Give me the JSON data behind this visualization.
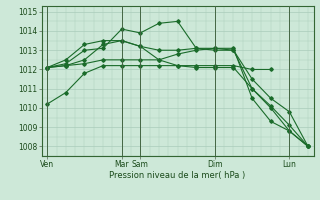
{
  "title": "",
  "xlabel": "Pression niveau de la mer( hPa )",
  "ylabel": "",
  "bg_color": "#cde8d8",
  "grid_color": "#aaccbb",
  "line_color": "#1a6b2a",
  "ylim": [
    1007.5,
    1015.3
  ],
  "xlim": [
    -0.3,
    14.3
  ],
  "x_ticks": [
    0,
    4,
    5,
    9,
    13
  ],
  "x_tick_labels": [
    "Ven",
    "Mar",
    "Sam",
    "Dim",
    "Lun"
  ],
  "x_vlines": [
    0,
    4,
    5,
    9,
    13
  ],
  "yticks": [
    1008,
    1009,
    1010,
    1011,
    1012,
    1013,
    1014,
    1015
  ],
  "series": [
    [
      1010.2,
      1010.8,
      1011.8,
      1012.2,
      1012.2,
      1012.2,
      1012.2,
      1012.2,
      1012.2,
      1012.2,
      1012.2,
      1012.0,
      1012.0
    ],
    [
      1012.1,
      1012.2,
      1012.5,
      1013.3,
      1013.5,
      1013.2,
      1013.0,
      1013.0,
      1013.1,
      1013.1,
      1013.0,
      1011.5,
      1010.5,
      1009.8,
      1008.0
    ],
    [
      1012.1,
      1012.3,
      1013.0,
      1013.1,
      1014.1,
      1013.9,
      1014.4,
      1014.5,
      1013.1,
      1013.0,
      1013.0,
      1011.0,
      1010.0,
      1008.8,
      1008.0
    ],
    [
      1012.1,
      1012.5,
      1013.3,
      1013.5,
      1013.5,
      1013.2,
      1012.5,
      1012.2,
      1012.1,
      1012.1,
      1012.1,
      1011.0,
      1010.1,
      1009.1,
      1008.0
    ],
    [
      1012.1,
      1012.2,
      1012.3,
      1012.5,
      1012.5,
      1012.5,
      1012.5,
      1012.8,
      1013.0,
      1013.1,
      1013.1,
      1010.5,
      1009.3,
      1008.8,
      1008.0
    ]
  ],
  "series_x": [
    [
      0,
      1,
      2,
      3,
      4,
      5,
      6,
      7,
      8,
      9,
      10,
      11,
      12
    ],
    [
      0,
      1,
      2,
      3,
      4,
      5,
      6,
      7,
      8,
      9,
      10,
      11,
      12,
      13,
      14
    ],
    [
      0,
      1,
      2,
      3,
      4,
      5,
      6,
      7,
      8,
      9,
      10,
      11,
      12,
      13,
      14
    ],
    [
      0,
      1,
      2,
      3,
      4,
      5,
      6,
      7,
      8,
      9,
      10,
      11,
      12,
      13,
      14
    ],
    [
      0,
      1,
      2,
      3,
      4,
      5,
      6,
      7,
      8,
      9,
      10,
      11,
      12,
      13,
      14
    ]
  ]
}
